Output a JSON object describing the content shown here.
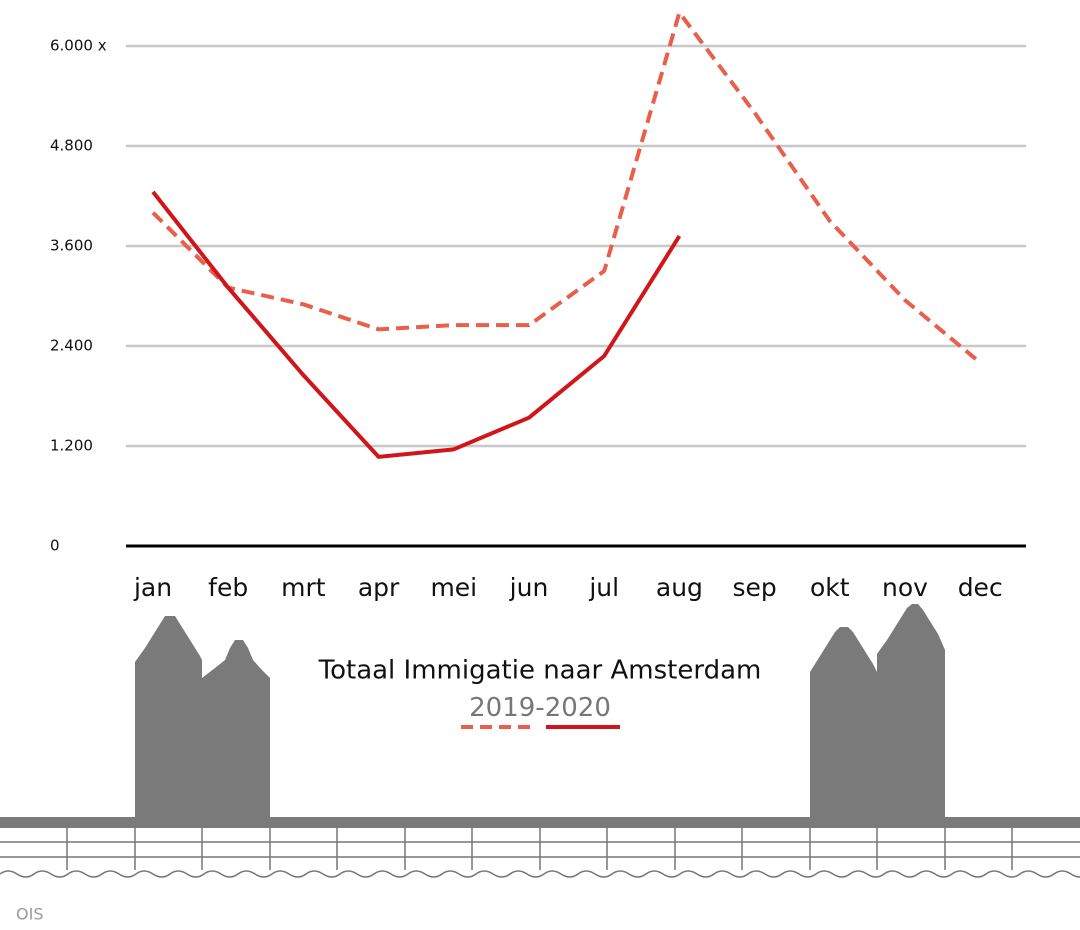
{
  "chart_data": {
    "type": "line",
    "title": "Totaal Immigatie naar Amsterdam",
    "categories": [
      "jan",
      "feb",
      "mrt",
      "apr",
      "mei",
      "jun",
      "jul",
      "aug",
      "sep",
      "okt",
      "nov",
      "dec"
    ],
    "series": [
      {
        "name": "2019",
        "color": "#e8604c",
        "dashed": true,
        "values": [
          4000,
          3100,
          2900,
          2600,
          2650,
          2650,
          3300,
          6400,
          5200,
          3900,
          2950,
          2200
        ]
      },
      {
        "name": "2020",
        "color": "#d0161b",
        "dashed": false,
        "values": [
          4250,
          3100,
          2050,
          1070,
          1160,
          1540,
          2280,
          3720,
          null,
          null,
          null,
          null
        ]
      }
    ],
    "legend_joiner": "-",
    "ylim": [
      0,
      6000
    ],
    "yticks": [
      0,
      {
        "value": 1200,
        "label": "1.200"
      },
      {
        "value": 2400,
        "label": "2.400"
      },
      {
        "value": 3600,
        "label": "3.600"
      },
      {
        "value": 4800,
        "label": "4.800"
      },
      {
        "value": 6000,
        "label": "6.000 x"
      }
    ],
    "grid": true,
    "source": "OIS"
  }
}
